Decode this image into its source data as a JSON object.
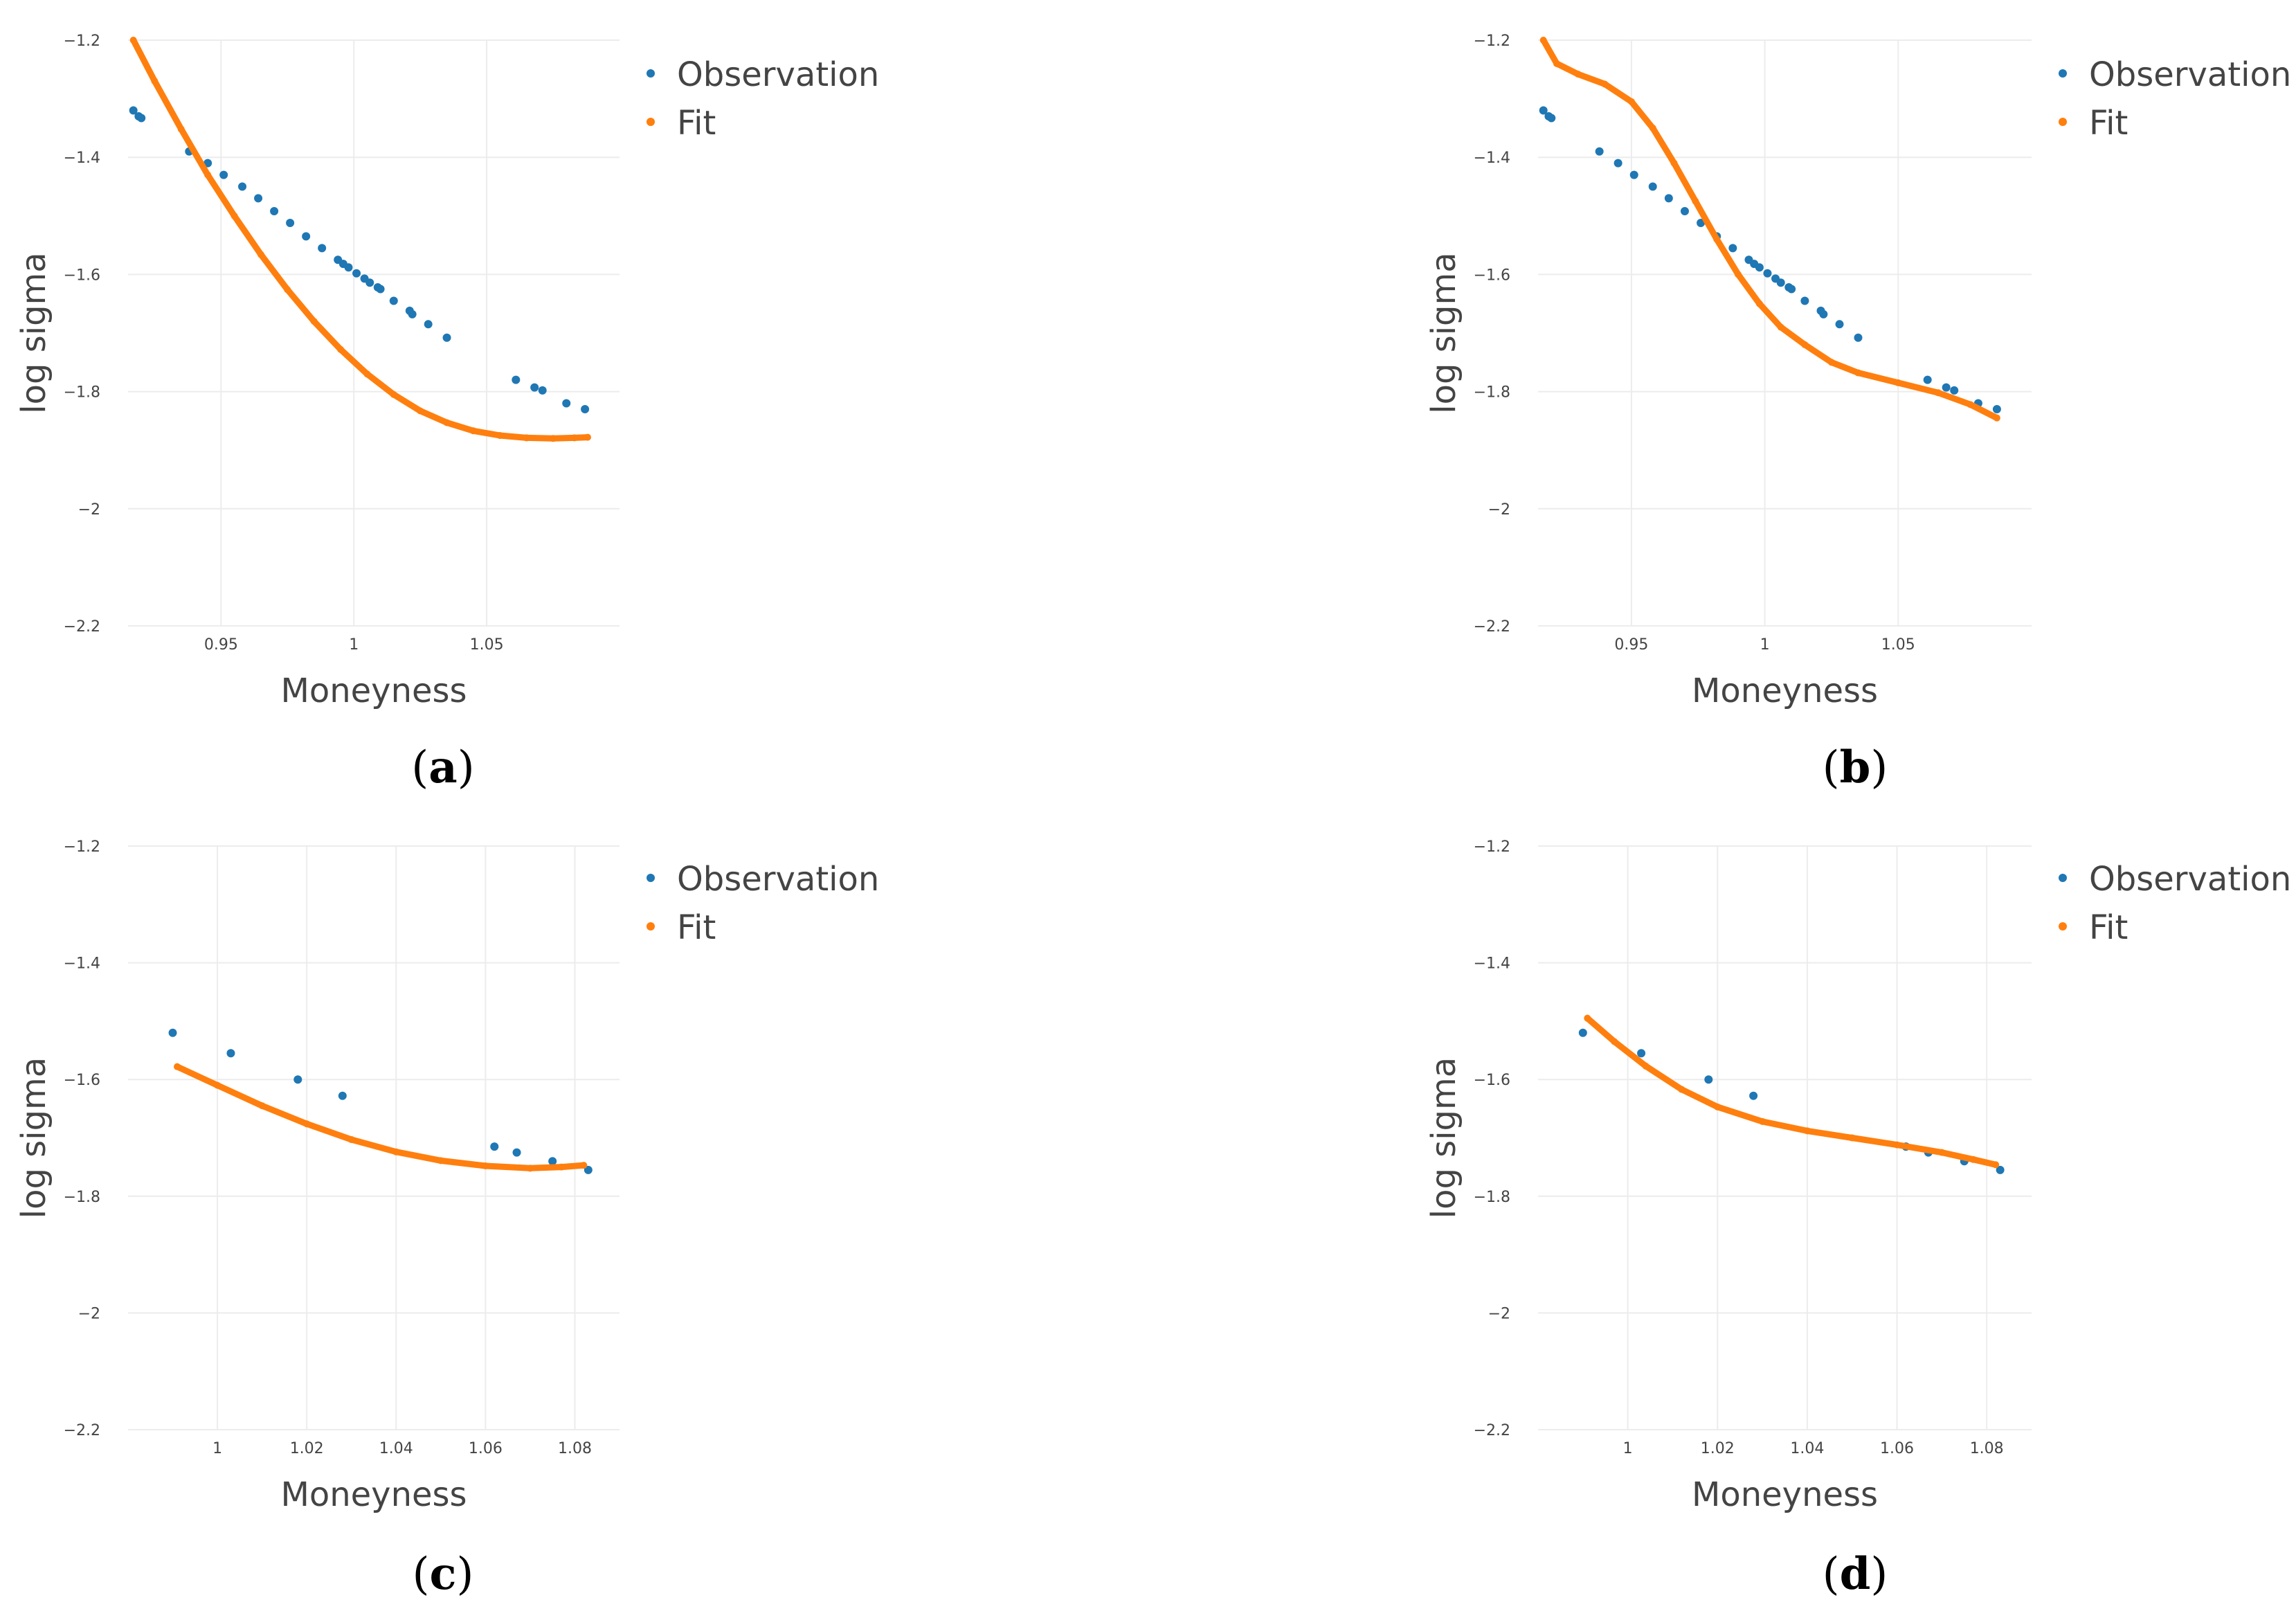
{
  "colors": {
    "observation": "#1f77b4",
    "fit": "#ff7f0e",
    "grid": "#ececec",
    "text": "#444444"
  },
  "chart_data": [
    {
      "panel": "a",
      "type": "scatter",
      "xlabel": "Moneyness",
      "ylabel": "log sigma",
      "xlim": [
        0.915,
        1.1
      ],
      "ylim": [
        -2.2,
        -1.2
      ],
      "xticks": [
        0.95,
        1,
        1.05
      ],
      "xtick_labels": [
        "0.95",
        "1",
        "1.05"
      ],
      "yticks": [
        -1.2,
        -1.4,
        -1.6,
        -1.8,
        -2,
        -2.2
      ],
      "ytick_labels": [
        "−1.2",
        "−1.4",
        "−1.6",
        "−1.8",
        "−2",
        "−2.2"
      ],
      "legend": [
        "Observation",
        "Fit"
      ],
      "series": [
        {
          "name": "Observation",
          "mode": "markers",
          "x": [
            0.917,
            0.919,
            0.92,
            0.938,
            0.945,
            0.951,
            0.958,
            0.964,
            0.97,
            0.976,
            0.982,
            0.988,
            0.994,
            0.996,
            0.998,
            1.001,
            1.004,
            1.006,
            1.009,
            1.01,
            1.015,
            1.021,
            1.022,
            1.028,
            1.035,
            1.061,
            1.068,
            1.071,
            1.08,
            1.087
          ],
          "y": [
            -1.32,
            -1.33,
            -1.333,
            -1.39,
            -1.41,
            -1.43,
            -1.45,
            -1.47,
            -1.492,
            -1.512,
            -1.535,
            -1.555,
            -1.575,
            -1.582,
            -1.588,
            -1.598,
            -1.607,
            -1.614,
            -1.622,
            -1.625,
            -1.645,
            -1.662,
            -1.668,
            -1.685,
            -1.708,
            -1.78,
            -1.793,
            -1.798,
            -1.82,
            -1.83
          ]
        },
        {
          "name": "Fit",
          "mode": "line-markers",
          "x": [
            0.917,
            0.925,
            0.935,
            0.945,
            0.955,
            0.965,
            0.975,
            0.985,
            0.995,
            1.005,
            1.015,
            1.025,
            1.035,
            1.045,
            1.055,
            1.065,
            1.075,
            1.083,
            1.088
          ],
          "y": [
            -1.2,
            -1.27,
            -1.352,
            -1.43,
            -1.5,
            -1.566,
            -1.626,
            -1.68,
            -1.728,
            -1.77,
            -1.805,
            -1.833,
            -1.853,
            -1.867,
            -1.875,
            -1.879,
            -1.88,
            -1.879,
            -1.878
          ]
        }
      ]
    },
    {
      "panel": "b",
      "type": "scatter",
      "xlabel": "Moneyness",
      "ylabel": "log sigma",
      "xlim": [
        0.915,
        1.1
      ],
      "ylim": [
        -2.2,
        -1.2
      ],
      "xticks": [
        0.95,
        1,
        1.05
      ],
      "xtick_labels": [
        "0.95",
        "1",
        "1.05"
      ],
      "yticks": [
        -1.2,
        -1.4,
        -1.6,
        -1.8,
        -2,
        -2.2
      ],
      "ytick_labels": [
        "−1.2",
        "−1.4",
        "−1.6",
        "−1.8",
        "−2",
        "−2.2"
      ],
      "legend": [
        "Observation",
        "Fit"
      ],
      "series": [
        {
          "name": "Observation",
          "mode": "markers",
          "x": [
            0.917,
            0.919,
            0.92,
            0.938,
            0.945,
            0.951,
            0.958,
            0.964,
            0.97,
            0.976,
            0.982,
            0.988,
            0.994,
            0.996,
            0.998,
            1.001,
            1.004,
            1.006,
            1.009,
            1.01,
            1.015,
            1.021,
            1.022,
            1.028,
            1.035,
            1.061,
            1.068,
            1.071,
            1.08,
            1.087
          ],
          "y": [
            -1.32,
            -1.33,
            -1.333,
            -1.39,
            -1.41,
            -1.43,
            -1.45,
            -1.47,
            -1.492,
            -1.512,
            -1.535,
            -1.555,
            -1.575,
            -1.582,
            -1.588,
            -1.598,
            -1.607,
            -1.614,
            -1.622,
            -1.625,
            -1.645,
            -1.662,
            -1.668,
            -1.685,
            -1.708,
            -1.78,
            -1.793,
            -1.798,
            -1.82,
            -1.83
          ]
        },
        {
          "name": "Fit",
          "mode": "line-markers",
          "x": [
            0.917,
            0.922,
            0.93,
            0.94,
            0.95,
            0.958,
            0.966,
            0.974,
            0.982,
            0.99,
            0.998,
            1.006,
            1.015,
            1.025,
            1.035,
            1.05,
            1.065,
            1.077,
            1.087
          ],
          "y": [
            -1.2,
            -1.24,
            -1.258,
            -1.275,
            -1.305,
            -1.35,
            -1.41,
            -1.475,
            -1.54,
            -1.6,
            -1.65,
            -1.69,
            -1.72,
            -1.75,
            -1.768,
            -1.785,
            -1.802,
            -1.822,
            -1.845
          ]
        }
      ]
    },
    {
      "panel": "c",
      "type": "scatter",
      "xlabel": "Moneyness",
      "ylabel": "log sigma",
      "xlim": [
        0.98,
        1.09
      ],
      "ylim": [
        -2.2,
        -1.2
      ],
      "xticks": [
        1,
        1.02,
        1.04,
        1.06,
        1.08
      ],
      "xtick_labels": [
        "1",
        "1.02",
        "1.04",
        "1.06",
        "1.08"
      ],
      "yticks": [
        -1.2,
        -1.4,
        -1.6,
        -1.8,
        -2,
        -2.2
      ],
      "ytick_labels": [
        "−1.2",
        "−1.4",
        "−1.6",
        "−1.8",
        "−2",
        "−2.2"
      ],
      "legend": [
        "Observation",
        "Fit"
      ],
      "series": [
        {
          "name": "Observation",
          "mode": "markers",
          "x": [
            0.99,
            1.003,
            1.018,
            1.028,
            1.062,
            1.067,
            1.075,
            1.083
          ],
          "y": [
            -1.52,
            -1.555,
            -1.6,
            -1.628,
            -1.715,
            -1.725,
            -1.74,
            -1.755
          ]
        },
        {
          "name": "Fit",
          "mode": "line-markers",
          "x": [
            0.991,
            1.0,
            1.01,
            1.02,
            1.03,
            1.04,
            1.05,
            1.06,
            1.07,
            1.077,
            1.082
          ],
          "y": [
            -1.578,
            -1.61,
            -1.645,
            -1.676,
            -1.703,
            -1.724,
            -1.739,
            -1.748,
            -1.752,
            -1.75,
            -1.747
          ]
        }
      ]
    },
    {
      "panel": "d",
      "type": "scatter",
      "xlabel": "Moneyness",
      "ylabel": "log sigma",
      "xlim": [
        0.98,
        1.09
      ],
      "ylim": [
        -2.2,
        -1.2
      ],
      "xticks": [
        1,
        1.02,
        1.04,
        1.06,
        1.08
      ],
      "xtick_labels": [
        "1",
        "1.02",
        "1.04",
        "1.06",
        "1.08"
      ],
      "yticks": [
        -1.2,
        -1.4,
        -1.6,
        -1.8,
        -2,
        -2.2
      ],
      "ytick_labels": [
        "−1.2",
        "−1.4",
        "−1.6",
        "−1.8",
        "−2",
        "−2.2"
      ],
      "legend": [
        "Observation",
        "Fit"
      ],
      "series": [
        {
          "name": "Observation",
          "mode": "markers",
          "x": [
            0.99,
            1.003,
            1.018,
            1.028,
            1.062,
            1.067,
            1.075,
            1.083
          ],
          "y": [
            -1.52,
            -1.555,
            -1.6,
            -1.628,
            -1.715,
            -1.725,
            -1.74,
            -1.755
          ]
        },
        {
          "name": "Fit",
          "mode": "line-markers",
          "x": [
            0.991,
            0.997,
            1.004,
            1.012,
            1.02,
            1.03,
            1.04,
            1.05,
            1.06,
            1.07,
            1.077,
            1.082
          ],
          "y": [
            -1.495,
            -1.535,
            -1.577,
            -1.617,
            -1.647,
            -1.672,
            -1.688,
            -1.7,
            -1.712,
            -1.725,
            -1.737,
            -1.746
          ]
        }
      ]
    }
  ]
}
